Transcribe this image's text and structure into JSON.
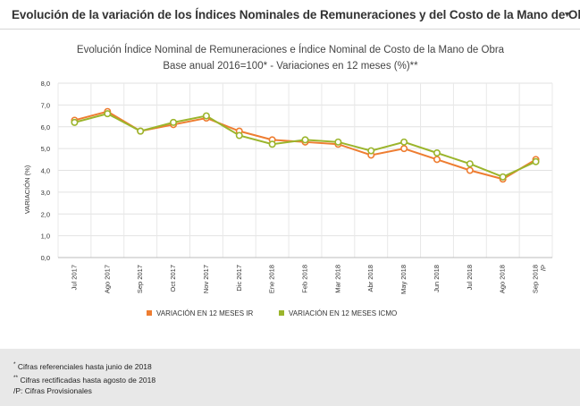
{
  "header": {
    "title": "Evolución de la variación de los Índices Nominales de Remuneraciones y del Costo de la Mano de Obra",
    "dropdown_icon": "triangle-down-icon",
    "dropdown_glyph": "▼"
  },
  "chart_data": {
    "type": "line",
    "title": "Evolución Índice Nominal de Remuneraciones e Índice Nominal de Costo de la Mano de Obra",
    "subtitle": "Base anual 2016=100* - Variaciones en 12 meses (%)**",
    "xlabel": "",
    "ylabel": "VARIACIÓN (%)",
    "ylim": [
      0,
      8
    ],
    "yticks": [
      "0,0",
      "1,0",
      "2,0",
      "3,0",
      "4,0",
      "5,0",
      "6,0",
      "7,0",
      "8,0"
    ],
    "grid": true,
    "legend_position": "bottom",
    "categories": [
      "Jul 2017",
      "Ago 2017",
      "Sep 2017",
      "Oct 2017",
      "Nov 2017",
      "Dic 2017",
      "Ene 2018",
      "Feb 2018",
      "Mar 2018",
      "Abr 2018",
      "May 2018",
      "Jun 2018",
      "Jul 2018",
      "Ago 2018",
      "Sep 2018 /P"
    ],
    "category_lines": [
      [
        "Jul 2017"
      ],
      [
        "Ago 2017"
      ],
      [
        "Sep 2017"
      ],
      [
        "Oct 2017"
      ],
      [
        "Nov 2017"
      ],
      [
        "Dic 2017"
      ],
      [
        "Ene 2018"
      ],
      [
        "Feb 2018"
      ],
      [
        "Mar 2018"
      ],
      [
        "Abr 2018"
      ],
      [
        "May 2018"
      ],
      [
        "Jun 2018"
      ],
      [
        "Jul 2018"
      ],
      [
        "Ago 2018"
      ],
      [
        "Sep 2018",
        "/P"
      ]
    ],
    "series": [
      {
        "name": "VARIACIÓN EN 12 MESES IR",
        "color": "#ee7d31",
        "values": [
          6.3,
          6.7,
          5.8,
          6.1,
          6.4,
          5.8,
          5.4,
          5.3,
          5.2,
          4.7,
          5.0,
          4.5,
          4.0,
          3.6,
          4.5
        ]
      },
      {
        "name": "VARIACIÓN EN 12 MESES ICMO",
        "color": "#9bb52c",
        "values": [
          6.2,
          6.6,
          5.8,
          6.2,
          6.5,
          5.6,
          5.2,
          5.4,
          5.3,
          4.9,
          5.3,
          4.8,
          4.3,
          3.7,
          4.4
        ]
      }
    ]
  },
  "footer": {
    "notes": [
      {
        "mark": "*",
        "text": "Cifras referenciales hasta junio de 2018"
      },
      {
        "mark": "**",
        "text": "Cifras rectificadas hasta agosto de 2018"
      },
      {
        "mark": "",
        "text": "/P: Cifras Provisionales"
      }
    ]
  }
}
